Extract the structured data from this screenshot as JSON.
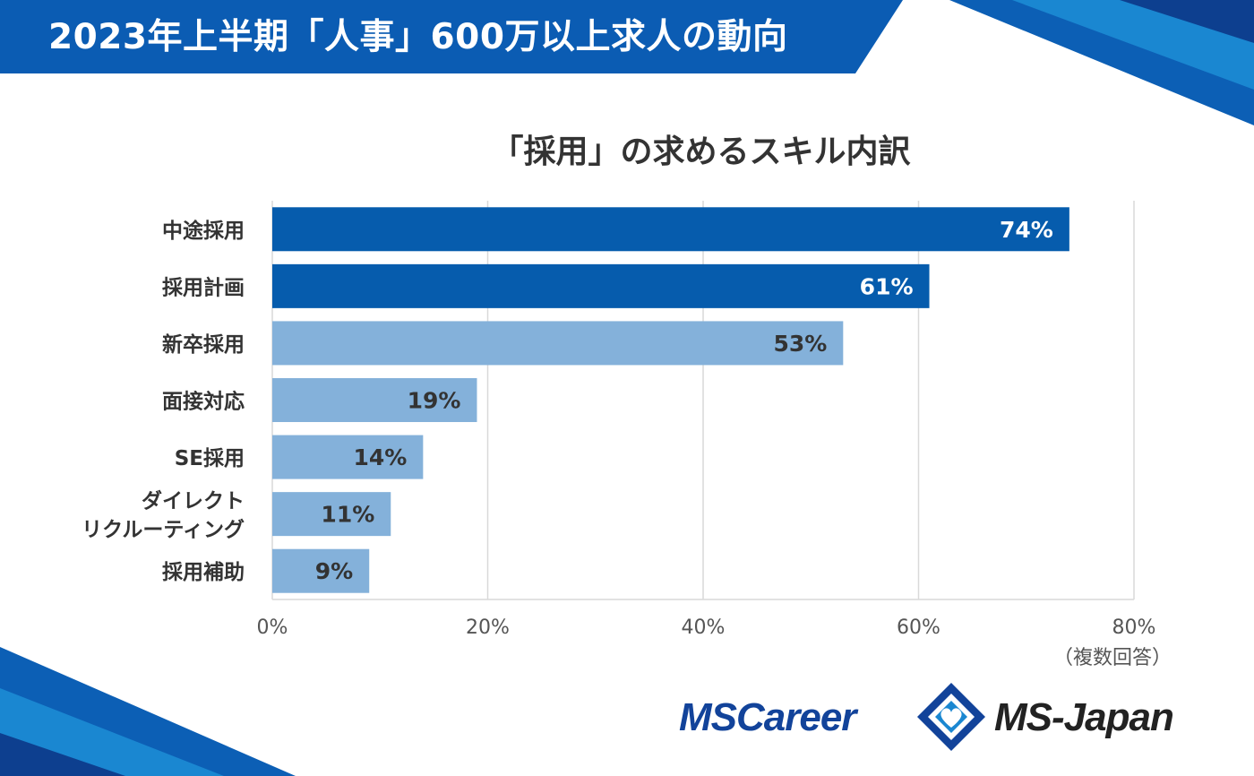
{
  "header": {
    "title": "2023年上半期「人事」600万以上求人の動向"
  },
  "chart_data": {
    "type": "bar",
    "orientation": "horizontal",
    "title": "「採用」の求めるスキル内訳",
    "categories": [
      "中途採用",
      "採用計画",
      "新卒採用",
      "面接対応",
      "SE採用",
      "ダイレクト\nリクルーティング",
      "採用補助"
    ],
    "values": [
      74,
      61,
      53,
      19,
      14,
      11,
      9
    ],
    "value_labels": [
      "74%",
      "61%",
      "53%",
      "19%",
      "14%",
      "11%",
      "9%"
    ],
    "bar_colors": [
      "#065cad",
      "#065cad",
      "#84b1da",
      "#84b1da",
      "#84b1da",
      "#84b1da",
      "#84b1da"
    ],
    "label_colors": [
      "#ffffff",
      "#ffffff",
      "#333333",
      "#333333",
      "#333333",
      "#333333",
      "#333333"
    ],
    "x_ticks": [
      0,
      20,
      40,
      60,
      80
    ],
    "x_tick_labels": [
      "0%",
      "20%",
      "40%",
      "60%",
      "80%"
    ],
    "xlim": [
      0,
      80
    ],
    "grid": true,
    "legend": "none"
  },
  "note": "（複数回答）",
  "logos": {
    "mscareer": "MSCareer",
    "msjapan": "MS-Japan"
  },
  "colors": {
    "brand_blue": "#065cad",
    "light_blue": "#84b1da",
    "header_blue": "#0b5cb3",
    "logo_navy": "#12439a"
  }
}
